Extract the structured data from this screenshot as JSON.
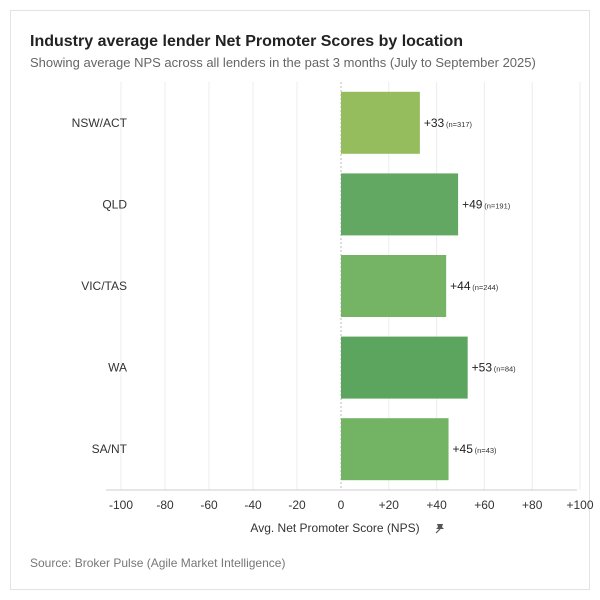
{
  "title": "Industry average lender Net Promoter Scores by location",
  "subtitle": "Showing average NPS across all lenders in the past 3 months (July to September 2025)",
  "source": "Source: Broker Pulse (Agile Market Intelligence)",
  "chart_data": {
    "type": "bar",
    "orientation": "horizontal",
    "title": "Industry average lender Net Promoter Scores by location",
    "xlabel": "Avg. Net Promoter Score (NPS)",
    "ylabel": "",
    "xlim": [
      -100,
      100
    ],
    "grid": true,
    "categories": [
      "NSW/ACT",
      "QLD",
      "VIC/TAS",
      "WA",
      "SA/NT"
    ],
    "values": [
      33,
      49,
      44,
      53,
      45
    ],
    "value_labels": [
      "+33",
      "+49",
      "+44",
      "+53",
      "+45"
    ],
    "sample_labels": [
      "(n=317)",
      "(n=191)",
      "(n=244)",
      "(n=84)",
      "(n=43)"
    ],
    "bar_colors": [
      "#95bd5e",
      "#63a862",
      "#74b464",
      "#5ba55e",
      "#72b364"
    ],
    "ticks": [
      -100,
      -80,
      -60,
      -40,
      -20,
      0,
      20,
      40,
      60,
      80,
      100
    ],
    "tick_labels": [
      "-100",
      "-80",
      "-60",
      "-40",
      "-20",
      "0",
      "+20",
      "+40",
      "+60",
      "+80",
      "+100"
    ]
  }
}
